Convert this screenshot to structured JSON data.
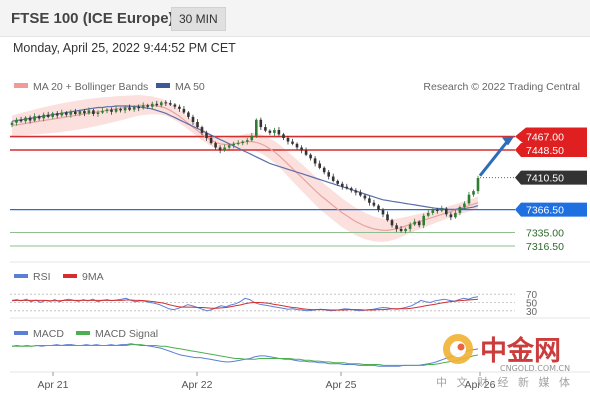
{
  "header": {
    "title": "FTSE 100 (ICE Europe)",
    "interval": "30 MIN"
  },
  "datetime": "Monday, April 25, 2022 9:44:52 PM CET",
  "legend": {
    "bb": "MA 20 + Bollinger Bands",
    "ma50": "MA 50",
    "credit": "Research © 2022 Trading Central"
  },
  "rsi_legend": {
    "rsi": "RSI",
    "ma9": "9MA"
  },
  "macd_legend": {
    "macd": "MACD",
    "signal": "MACD Signal"
  },
  "colors": {
    "up": "#2e7d32",
    "down": "#333333",
    "resistance": "#d32f2f",
    "support": "#1e6fe0",
    "bb_fill": "#f9d3cf",
    "ma20": "#e9a3a0",
    "ma50": "#5c6fa8",
    "target_arrow": "#2c6cb8",
    "rsi": "#5b7fd6",
    "rsi_ma": "#d32f2f",
    "macd": "#5b7fd6",
    "macd_signal": "#4caf50"
  },
  "watermark": {
    "logo_text": "中金网",
    "url": "CNGOLD.COM.CN",
    "sub": "中 文 财 经 新 媒 体"
  },
  "chart_data": {
    "type": "candlestick",
    "title": "FTSE 100 (ICE Europe)",
    "ylim": [
      7300,
      7520
    ],
    "x_ticks": [
      "Apr 21",
      "Apr 22",
      "Apr 25",
      "Apr 26"
    ],
    "levels": [
      {
        "label": "7467.00",
        "value": 7467,
        "kind": "target"
      },
      {
        "label": "7448.50",
        "value": 7448.5,
        "kind": "resistance"
      },
      {
        "label": "7410.50",
        "value": 7410.5,
        "kind": "last"
      },
      {
        "label": "7366.50",
        "value": 7366.5,
        "kind": "pivot"
      },
      {
        "label": "7335.00",
        "value": 7335,
        "kind": "support"
      },
      {
        "label": "7316.50",
        "value": 7316.5,
        "kind": "support"
      }
    ],
    "close": [
      7486,
      7490,
      7488,
      7493,
      7489,
      7495,
      7492,
      7497,
      7494,
      7499,
      7496,
      7500,
      7497,
      7501,
      7498,
      7502,
      7499,
      7503,
      7498,
      7500,
      7502,
      7504,
      7501,
      7505,
      7503,
      7507,
      7504,
      7508,
      7506,
      7510,
      7508,
      7512,
      7510,
      7514,
      7513,
      7511,
      7508,
      7505,
      7500,
      7494,
      7487,
      7480,
      7472,
      7465,
      7458,
      7452,
      7448,
      7452,
      7455,
      7457,
      7458,
      7460,
      7462,
      7468,
      7490,
      7480,
      7475,
      7472,
      7476,
      7470,
      7465,
      7460,
      7457,
      7452,
      7448,
      7442,
      7437,
      7430,
      7424,
      7418,
      7412,
      7406,
      7402,
      7398,
      7396,
      7393,
      7390,
      7386,
      7382,
      7376,
      7372,
      7366,
      7360,
      7352,
      7345,
      7340,
      7337,
      7340,
      7346,
      7350,
      7345,
      7358,
      7362,
      7366,
      7365,
      7368,
      7360,
      7356,
      7362,
      7370,
      7375,
      7387,
      7392,
      7410
    ],
    "ma20": [
      7482,
      7483,
      7484,
      7485,
      7486,
      7487,
      7488,
      7489,
      7490,
      7491,
      7492,
      7493,
      7494,
      7495,
      7496,
      7497,
      7498,
      7499,
      7500,
      7501,
      7502,
      7503,
      7504,
      7505,
      7506,
      7507,
      7508,
      7509,
      7510,
      7510,
      7510,
      7510,
      7509,
      7508,
      7506,
      7503,
      7499,
      7495,
      7490,
      7485,
      7480,
      7475,
      7470,
      7466,
      7462,
      7459,
      7457,
      7456,
      7456,
      7457,
      7458,
      7459,
      7460,
      7460,
      7459,
      7457,
      7454,
      7450,
      7446,
      7441,
      7435,
      7429,
      7423,
      7417,
      7411,
      7405,
      7399,
      7393,
      7387,
      7382,
      7377,
      7372,
      7367,
      7362,
      7358,
      7354,
      7350,
      7347,
      7344,
      7342,
      7340,
      7339,
      7338,
      7338,
      7339,
      7340,
      7342,
      7344,
      7346,
      7348,
      7350,
      7352,
      7354,
      7356,
      7358,
      7360,
      7362,
      7364,
      7366,
      7368,
      7370,
      7372,
      7374,
      7376
    ],
    "ma50": [
      7488,
      7489,
      7490,
      7491,
      7492,
      7493,
      7494,
      7495,
      7496,
      7497,
      7498,
      7499,
      7500,
      7501,
      7502,
      7503,
      7504,
      7505,
      7506,
      7507,
      7507,
      7508,
      7508,
      7509,
      7509,
      7509,
      7509,
      7508,
      7508,
      7507,
      7506,
      7505,
      7503,
      7501,
      7499,
      7496,
      7493,
      7490,
      7487,
      7484,
      7481,
      7478,
      7475,
      7472,
      7469,
      7466,
      7463,
      7460,
      7457,
      7454,
      7451,
      7448,
      7445,
      7442,
      7439,
      7436,
      7433,
      7430,
      7428,
      7426,
      7424,
      7422,
      7420,
      7418,
      7416,
      7414,
      7412,
      7410,
      7408,
      7406,
      7404,
      7402,
      7400,
      7398,
      7396,
      7394,
      7392,
      7390,
      7388,
      7386,
      7384,
      7382,
      7380,
      7379,
      7378,
      7377,
      7376,
      7375,
      7374,
      7373,
      7372,
      7371,
      7370,
      7369,
      7368,
      7368,
      7367,
      7367,
      7367,
      7368,
      7368,
      7369,
      7370,
      7372
    ],
    "rsi": [
      55,
      57,
      54,
      58,
      52,
      56,
      50,
      55,
      53,
      57,
      52,
      56,
      58,
      55,
      53,
      57,
      54,
      58,
      52,
      55,
      57,
      54,
      56,
      58,
      60,
      55,
      52,
      54,
      53,
      50,
      48,
      45,
      40,
      35,
      33,
      36,
      40,
      45,
      42,
      38,
      34,
      30,
      33,
      38,
      42,
      40,
      44,
      47,
      52,
      60,
      57,
      50,
      46,
      44,
      42,
      40,
      38,
      36,
      34,
      35,
      33,
      32,
      30,
      31,
      33,
      34,
      32,
      30,
      31,
      33,
      35,
      34,
      32,
      30,
      31,
      33,
      34,
      36,
      38,
      37,
      35,
      34,
      36,
      39,
      42,
      48,
      55,
      52,
      50,
      54,
      56,
      58,
      55,
      53,
      57,
      60,
      58,
      62,
      64
    ],
    "rsi_ma": [
      54,
      55,
      55,
      55,
      55,
      55,
      55,
      55,
      54,
      54,
      54,
      55,
      55,
      55,
      55,
      55,
      55,
      55,
      55,
      55,
      55,
      55,
      55,
      55,
      56,
      56,
      55,
      55,
      54,
      53,
      52,
      50,
      48,
      45,
      42,
      40,
      39,
      39,
      39,
      38,
      38,
      37,
      36,
      36,
      37,
      38,
      40,
      42,
      44,
      47,
      49,
      50,
      50,
      49,
      48,
      46,
      44,
      42,
      40,
      38,
      37,
      35,
      34,
      33,
      33,
      33,
      33,
      32,
      32,
      32,
      32,
      33,
      33,
      33,
      32,
      32,
      32,
      33,
      33,
      34,
      35,
      35,
      35,
      35,
      36,
      38,
      40,
      42,
      44,
      46,
      48,
      50,
      52,
      53,
      54,
      55,
      56,
      57,
      58
    ],
    "macd": [
      5,
      6,
      5,
      6,
      5,
      6,
      5,
      6,
      6,
      7,
      6,
      7,
      7,
      6,
      6,
      7,
      6,
      7,
      6,
      6,
      7,
      6,
      7,
      7,
      8,
      7,
      6,
      6,
      5,
      4,
      3,
      1,
      -1,
      -3,
      -5,
      -6,
      -7,
      -8,
      -8,
      -9,
      -10,
      -11,
      -12,
      -13,
      -13,
      -12,
      -11,
      -10,
      -9,
      -7,
      -6,
      -6,
      -7,
      -8,
      -9,
      -10,
      -10,
      -11,
      -12,
      -12,
      -13,
      -13,
      -14,
      -14,
      -15,
      -15,
      -15,
      -16,
      -16,
      -16,
      -17,
      -17,
      -17,
      -17,
      -18,
      -18,
      -18,
      -18,
      -18,
      -17,
      -17,
      -17,
      -17,
      -16,
      -15,
      -14,
      -12,
      -10,
      -8,
      -6,
      -4,
      -2,
      0,
      1,
      2
    ],
    "macd_signal": [
      5,
      5,
      5,
      5,
      5,
      6,
      6,
      6,
      6,
      6,
      6,
      6,
      6,
      6,
      6,
      6,
      6,
      6,
      6,
      6,
      6,
      6,
      6,
      6,
      7,
      7,
      7,
      6,
      6,
      6,
      5,
      5,
      4,
      3,
      2,
      1,
      0,
      -1,
      -2,
      -3,
      -4,
      -5,
      -6,
      -7,
      -8,
      -9,
      -9,
      -10,
      -10,
      -10,
      -9,
      -9,
      -9,
      -9,
      -9,
      -9,
      -9,
      -10,
      -10,
      -11,
      -11,
      -12,
      -12,
      -13,
      -13,
      -14,
      -14,
      -14,
      -15,
      -15,
      -15,
      -16,
      -16,
      -16,
      -16,
      -17,
      -17,
      -17,
      -17,
      -17,
      -17,
      -17,
      -17,
      -17,
      -16,
      -16,
      -15,
      -14,
      -13,
      -12,
      -11,
      -9,
      -8,
      -6,
      -5
    ]
  }
}
